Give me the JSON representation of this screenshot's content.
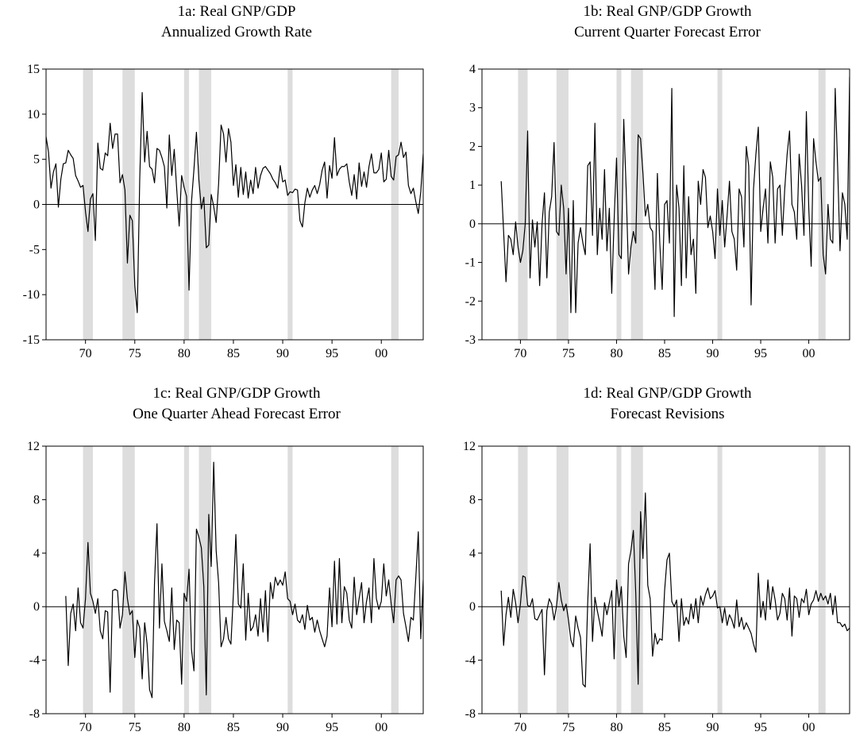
{
  "chart_data": [
    {
      "id": "1a",
      "type": "line",
      "title": "1a: Real GNP/GDP",
      "subtitle": "Annualized Growth Rate",
      "xlabel": "",
      "ylabel": "",
      "xlim": [
        1966.0,
        2004.25
      ],
      "ylim": [
        -15,
        15
      ],
      "yticks": [
        15,
        10,
        5,
        0,
        -5,
        -10,
        -15
      ],
      "xticks": [
        {
          "value": 1970,
          "label": "70"
        },
        {
          "value": 1975,
          "label": "75"
        },
        {
          "value": 1980,
          "label": "80"
        },
        {
          "value": 1985,
          "label": "85"
        },
        {
          "value": 1990,
          "label": "90"
        },
        {
          "value": 1995,
          "label": "95"
        },
        {
          "value": 2000,
          "label": "00"
        }
      ],
      "grid": false,
      "zero_line": true,
      "line_color": "#000000",
      "series": [
        {
          "x_start": 1966.0,
          "x_step": 0.25,
          "values": [
            7.5,
            5.8,
            1.8,
            3.6,
            4.5,
            -0.3,
            2.8,
            4.5,
            4.6,
            6.0,
            5.5,
            5.1,
            3.2,
            2.6,
            1.9,
            2.1,
            -0.8,
            -3.0,
            0.6,
            1.2,
            -4.0,
            6.8,
            4.0,
            3.8,
            5.7,
            5.4,
            9.0,
            6.2,
            7.8,
            7.8,
            2.4,
            3.3,
            1.6,
            -6.5,
            -1.2,
            -1.8,
            -9.0,
            -12.0,
            2.8,
            12.4,
            4.7,
            8.1,
            4.2,
            3.9,
            2.4,
            6.2,
            6.0,
            5.2,
            4.2,
            -0.4,
            7.7,
            3.2,
            6.1,
            1.7,
            -2.4,
            3.2,
            1.9,
            0.9,
            -9.5,
            0.3,
            3.9,
            8.0,
            2.7,
            -0.5,
            0.8,
            -4.8,
            -4.5,
            1.1,
            -0.2,
            -2.0,
            2.3,
            8.8,
            7.8,
            4.7,
            8.4,
            6.9,
            2.1,
            4.4,
            0.8,
            4.1,
            1.1,
            3.6,
            0.7,
            2.7,
            1.2,
            4.1,
            1.8,
            3.2,
            4.0,
            4.2,
            3.8,
            3.4,
            2.8,
            2.4,
            1.8,
            4.3,
            2.5,
            2.7,
            1.0,
            1.4,
            1.3,
            1.7,
            1.6,
            -1.8,
            -2.5,
            0.2,
            1.8,
            0.8,
            1.6,
            2.1,
            1.2,
            2.2,
            3.8,
            4.7,
            0.7,
            4.3,
            2.9,
            7.4,
            3.2,
            3.9,
            4.2,
            4.2,
            4.5,
            2.5,
            1.0,
            3.3,
            0.6,
            4.6,
            2.0,
            3.6,
            1.9,
            4.2,
            5.6,
            3.5,
            3.5,
            3.9,
            5.7,
            2.5,
            2.8,
            6.0,
            3.1,
            2.7,
            5.3,
            5.5,
            6.9,
            5.2,
            5.8,
            2.1,
            1.2,
            1.8,
            0.3,
            -1.0,
            1.4,
            5.6,
            1.2,
            4.0,
            1.4,
            1.6,
            2.5,
            8.2,
            4.0,
            4.3
          ]
        }
      ]
    },
    {
      "id": "1b",
      "type": "line",
      "title": "1b: Real GNP/GDP Growth",
      "subtitle": "Current Quarter Forecast Error",
      "xlabel": "",
      "ylabel": "",
      "xlim": [
        1966.0,
        2004.25
      ],
      "ylim": [
        -3,
        4
      ],
      "yticks": [
        4,
        3,
        2,
        1,
        0,
        -1,
        -2,
        -3
      ],
      "xticks": [
        {
          "value": 1970,
          "label": "70"
        },
        {
          "value": 1975,
          "label": "75"
        },
        {
          "value": 1980,
          "label": "80"
        },
        {
          "value": 1985,
          "label": "85"
        },
        {
          "value": 1990,
          "label": "90"
        },
        {
          "value": 1995,
          "label": "95"
        },
        {
          "value": 2000,
          "label": "00"
        }
      ],
      "grid": false,
      "zero_line": true,
      "line_color": "#000000",
      "series": [
        {
          "x_start": 1968.0,
          "x_step": 0.25,
          "values": [
            1.1,
            -0.2,
            -1.5,
            -0.3,
            -0.4,
            -0.8,
            0.05,
            -0.6,
            -1.0,
            -0.7,
            0.0,
            2.4,
            -1.4,
            0.1,
            -0.6,
            0.05,
            -1.6,
            0.0,
            0.8,
            -1.4,
            0.3,
            0.7,
            2.1,
            -0.2,
            -0.3,
            1.0,
            0.4,
            -1.3,
            0.4,
            -2.3,
            0.6,
            -2.3,
            -0.5,
            -0.1,
            -0.5,
            -0.8,
            1.5,
            1.6,
            -0.3,
            2.6,
            -0.8,
            0.4,
            -0.4,
            1.4,
            -0.7,
            0.4,
            -1.8,
            0.1,
            1.7,
            -0.8,
            -0.9,
            2.7,
            0.9,
            -1.3,
            -0.6,
            -0.2,
            -0.5,
            2.3,
            2.2,
            1.3,
            0.2,
            0.5,
            -0.1,
            -0.2,
            -1.7,
            1.3,
            -0.5,
            -1.7,
            0.5,
            0.6,
            -0.5,
            3.5,
            -2.4,
            1.0,
            0.4,
            -1.6,
            1.5,
            -1.4,
            0.7,
            -0.8,
            -0.4,
            -1.8,
            1.1,
            0.5,
            1.4,
            1.2,
            -0.1,
            0.2,
            -0.2,
            -0.9,
            0.9,
            -0.3,
            0.6,
            -0.6,
            0.2,
            1.1,
            -0.2,
            -0.4,
            -1.2,
            0.9,
            0.7,
            -0.6,
            2.0,
            1.5,
            -2.1,
            0.9,
            1.8,
            2.5,
            -0.2,
            0.4,
            0.9,
            -0.5,
            1.6,
            1.2,
            -0.5,
            0.9,
            1.0,
            -0.3,
            0.9,
            1.8,
            2.4,
            0.5,
            0.3,
            -0.4,
            1.8,
            1.0,
            -0.3,
            2.9,
            0.4,
            -1.1,
            2.2,
            1.6,
            1.1,
            1.2,
            -0.8,
            -1.3,
            0.5,
            -0.4,
            -0.5,
            3.5,
            1.5,
            -0.7,
            0.8,
            0.5,
            -0.4,
            3.8,
            -0.3
          ]
        }
      ]
    },
    {
      "id": "1c",
      "type": "line",
      "title": "1c: Real GNP/GDP Growth",
      "subtitle": "One Quarter Ahead Forecast Error",
      "xlabel": "",
      "ylabel": "",
      "xlim": [
        1966.0,
        2004.25
      ],
      "ylim": [
        -8,
        12
      ],
      "yticks": [
        12,
        8,
        4,
        0,
        -4,
        -8
      ],
      "xticks": [
        {
          "value": 1970,
          "label": "70"
        },
        {
          "value": 1975,
          "label": "75"
        },
        {
          "value": 1980,
          "label": "80"
        },
        {
          "value": 1985,
          "label": "85"
        },
        {
          "value": 1990,
          "label": "90"
        },
        {
          "value": 1995,
          "label": "95"
        },
        {
          "value": 2000,
          "label": "00"
        }
      ],
      "grid": false,
      "zero_line": true,
      "line_color": "#000000",
      "series": [
        {
          "x_start": 1968.0,
          "x_step": 0.25,
          "values": [
            0.8,
            -4.4,
            -0.5,
            0.2,
            -1.8,
            1.4,
            -1.2,
            -1.6,
            0.6,
            4.8,
            1.0,
            0.4,
            -0.5,
            0.6,
            -1.8,
            -2.4,
            -0.3,
            -0.4,
            -6.4,
            1.2,
            1.3,
            1.2,
            -1.6,
            -0.6,
            2.6,
            0.6,
            -0.6,
            -0.3,
            -3.8,
            -1.0,
            -1.6,
            -5.4,
            -1.2,
            -2.8,
            -6.2,
            -6.8,
            1.8,
            6.2,
            -1.6,
            3.2,
            -1.1,
            -1.8,
            -2.6,
            1.4,
            -3.2,
            -1.0,
            -1.2,
            -5.8,
            1.0,
            0.4,
            2.8,
            -3.2,
            -4.8,
            5.8,
            5.2,
            4.4,
            1.5,
            -6.6,
            6.9,
            3.0,
            10.8,
            4.2,
            1.8,
            -3.0,
            -2.4,
            -0.8,
            -2.4,
            -2.8,
            1.0,
            5.4,
            0.2,
            -0.1,
            3.2,
            -2.5,
            1.0,
            -1.8,
            -1.5,
            -0.6,
            -2.2,
            0.6,
            -1.9,
            1.2,
            -2.6,
            1.8,
            0.6,
            2.2,
            1.6,
            2.0,
            1.6,
            2.6,
            0.6,
            0.4,
            -0.6,
            0.2,
            -1.0,
            -1.2,
            -0.6,
            -1.7,
            0.1,
            -1.0,
            -0.8,
            -1.9,
            -1.0,
            -1.8,
            -2.4,
            -3.0,
            -2.2,
            1.4,
            -1.5,
            3.4,
            -1.3,
            3.6,
            -1.2,
            1.5,
            1.0,
            -1.0,
            -1.6,
            2.2,
            -0.6,
            0.6,
            1.8,
            -1.2,
            0.4,
            1.4,
            -1.2,
            3.6,
            0.6,
            -0.2,
            0.4,
            3.2,
            0.8,
            2.0,
            0.2,
            -1.2,
            2.0,
            2.3,
            2.0,
            -0.5,
            -1.5,
            -2.6,
            -0.8,
            -1.0,
            2.2,
            5.6,
            -2.4,
            2.0,
            -0.3,
            -0.2,
            1.0,
            4.4,
            -0.3,
            -0.8
          ]
        }
      ]
    },
    {
      "id": "1d",
      "type": "line",
      "title": "1d: Real GNP/GDP Growth",
      "subtitle": "Forecast Revisions",
      "xlabel": "",
      "ylabel": "",
      "xlim": [
        1966.0,
        2004.25
      ],
      "ylim": [
        -8,
        12
      ],
      "yticks": [
        12,
        8,
        4,
        0,
        -4,
        -8
      ],
      "xticks": [
        {
          "value": 1970,
          "label": "70"
        },
        {
          "value": 1975,
          "label": "75"
        },
        {
          "value": 1980,
          "label": "80"
        },
        {
          "value": 1985,
          "label": "85"
        },
        {
          "value": 1990,
          "label": "90"
        },
        {
          "value": 1995,
          "label": "95"
        },
        {
          "value": 2000,
          "label": "00"
        }
      ],
      "grid": false,
      "zero_line": true,
      "line_color": "#000000",
      "series": [
        {
          "x_start": 1968.0,
          "x_step": 0.25,
          "values": [
            1.2,
            -2.9,
            -0.6,
            0.7,
            -0.8,
            1.3,
            0.3,
            -1.2,
            0.2,
            2.3,
            2.2,
            0.1,
            0.0,
            0.6,
            -0.9,
            -1.0,
            -0.6,
            -0.2,
            -5.1,
            -0.3,
            0.6,
            0.2,
            -1.0,
            0.0,
            1.8,
            0.5,
            -0.3,
            0.2,
            -1.0,
            -2.5,
            -3.0,
            -0.7,
            -1.6,
            -2.3,
            -5.8,
            -6.0,
            0.3,
            4.7,
            -2.6,
            0.7,
            -0.3,
            -1.2,
            -2.2,
            0.3,
            -0.6,
            0.3,
            1.2,
            -3.9,
            2.0,
            0.0,
            1.5,
            -2.2,
            -3.8,
            3.2,
            4.2,
            5.7,
            1.0,
            -5.8,
            7.1,
            3.6,
            8.5,
            1.6,
            0.6,
            -3.7,
            -2.0,
            -2.8,
            -2.4,
            -2.5,
            1.2,
            3.5,
            4.0,
            0.4,
            0.0,
            0.5,
            -2.6,
            0.6,
            -1.4,
            -0.8,
            -1.3,
            0.2,
            -0.9,
            0.6,
            -1.2,
            0.8,
            0.1,
            0.9,
            1.4,
            0.6,
            0.8,
            1.2,
            -0.1,
            0.0,
            -1.2,
            -0.1,
            -1.4,
            -0.6,
            -1.0,
            -1.6,
            0.5,
            -1.5,
            -0.8,
            -1.7,
            -1.2,
            -1.6,
            -2.0,
            -2.8,
            -3.4,
            2.5,
            -0.8,
            0.4,
            -1.0,
            2.0,
            -0.2,
            1.5,
            0.5,
            -1.0,
            -0.5,
            1.0,
            0.6,
            -1.0,
            1.4,
            -2.2,
            0.8,
            0.6,
            -0.8,
            0.6,
            0.3,
            1.3,
            -0.6,
            0.2,
            0.5,
            1.2,
            0.4,
            1.0,
            0.5,
            0.8,
            0.2,
            1.0,
            -0.6,
            0.8,
            -1.2,
            -1.2,
            -1.5,
            -1.3,
            -1.8,
            -1.6,
            3.9,
            -1.8,
            -0.1,
            -1.0,
            -0.1,
            -0.9,
            0.6,
            -0.1
          ]
        }
      ]
    }
  ],
  "recession_bands": [
    [
      1969.75,
      1970.75
    ],
    [
      1973.75,
      1975.0
    ],
    [
      1980.0,
      1980.5
    ],
    [
      1981.5,
      1982.75
    ],
    [
      1990.5,
      1991.0
    ],
    [
      2001.0,
      2001.75
    ]
  ],
  "colors": {
    "recession_band": "#dddddd",
    "line": "#000000",
    "axis": "#000000"
  }
}
